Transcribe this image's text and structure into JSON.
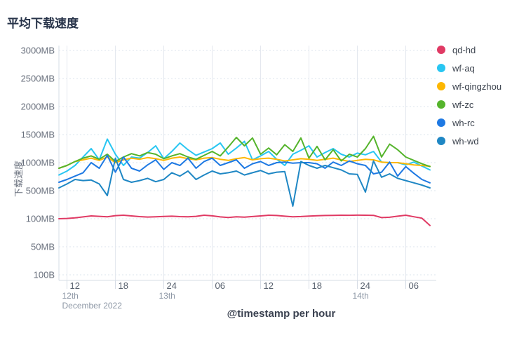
{
  "title": "平均下载速度",
  "chart_data": {
    "type": "line",
    "title": "平均下载速度",
    "legend_position": "right",
    "grid": true,
    "x_axis": {
      "title": "@timestamp per hour",
      "tick_indices": [
        1,
        7,
        13,
        19,
        25,
        31,
        37,
        43
      ],
      "tick_labels": [
        "12",
        "18",
        "24",
        "06",
        "12",
        "18",
        "24",
        "06"
      ],
      "day_labels": [
        {
          "text": "12th",
          "index": 1,
          "row": 1
        },
        {
          "text": "December 2022",
          "index": 1,
          "row": 2
        },
        {
          "text": "13th",
          "index": 13,
          "row": 1
        },
        {
          "text": "14th",
          "index": 37,
          "row": 1
        }
      ]
    },
    "y_axis": {
      "title": "下载速度",
      "tick_labels": [
        "3000MB",
        "2500MB",
        "2000MB",
        "1500MB",
        "1000MB",
        "500MB",
        "100MB",
        "50MB",
        "100B"
      ],
      "tick_values_mb": [
        3000,
        2500,
        2000,
        1500,
        1000,
        500,
        100,
        50,
        0.0001
      ]
    },
    "series": [
      {
        "name": "qd-hd",
        "color": "#e03a64",
        "values": [
          100,
          104,
          112,
          126,
          140,
          134,
          128,
          144,
          150,
          140,
          130,
          124,
          128,
          132,
          136,
          130,
          127,
          134,
          150,
          141,
          126,
          118,
          128,
          122,
          131,
          140,
          150,
          146,
          136,
          128,
          131,
          138,
          142,
          146,
          148,
          150,
          149,
          151,
          150,
          148,
          116,
          121,
          136,
          150,
          128,
          108,
          88
        ]
      },
      {
        "name": "wf-aq",
        "color": "#28c6f2",
        "values": [
          780,
          850,
          950,
          1100,
          1250,
          1050,
          1420,
          1150,
          950,
          1100,
          1080,
          1180,
          1300,
          1070,
          1200,
          1350,
          1230,
          1130,
          1190,
          1250,
          1350,
          1150,
          1260,
          1380,
          1050,
          1120,
          1200,
          1060,
          950,
          1150,
          1220,
          1300,
          1100,
          1180,
          1250,
          1150,
          1100,
          1170,
          1140,
          1200,
          1010,
          1000,
          1000,
          960,
          1010,
          940,
          870
        ]
      },
      {
        "name": "wf-qingzhou",
        "color": "#fdb702",
        "values": [
          900,
          950,
          1020,
          1050,
          1080,
          1040,
          1100,
          1000,
          1050,
          1080,
          1060,
          1090,
          1070,
          1040,
          1080,
          1100,
          1070,
          1050,
          1080,
          1090,
          1060,
          1040,
          1070,
          1090,
          1050,
          1070,
          1080,
          1060,
          1030,
          1050,
          1070,
          1060,
          1040,
          1060,
          1080,
          1050,
          1020,
          1040,
          1060,
          1050,
          1010,
          1000,
          1000,
          980,
          960,
          950,
          935
        ]
      },
      {
        "name": "wf-zc",
        "color": "#55b42c",
        "values": [
          900,
          950,
          1020,
          1080,
          1120,
          1060,
          1150,
          1020,
          1100,
          1160,
          1120,
          1180,
          1150,
          1070,
          1120,
          1160,
          1100,
          1060,
          1130,
          1200,
          1120,
          1280,
          1450,
          1300,
          1440,
          1150,
          1260,
          1140,
          1320,
          1200,
          1440,
          1080,
          1290,
          1050,
          1230,
          1030,
          1150,
          1100,
          1250,
          1470,
          1100,
          1330,
          1230,
          1100,
          1040,
          980,
          930
        ]
      },
      {
        "name": "wh-rc",
        "color": "#1e79e3",
        "values": [
          650,
          700,
          760,
          820,
          1000,
          900,
          1130,
          830,
          1100,
          900,
          850,
          960,
          1050,
          880,
          1000,
          950,
          1080,
          900,
          1020,
          1080,
          950,
          1000,
          1050,
          900,
          980,
          1020,
          950,
          1000,
          1010,
          990,
          1000,
          1000,
          980,
          900,
          1010,
          950,
          1030,
          980,
          950,
          800,
          830,
          1010,
          760,
          930,
          810,
          700,
          640
        ]
      },
      {
        "name": "wh-wd",
        "color": "#1f87c4",
        "values": [
          550,
          620,
          700,
          680,
          690,
          620,
          430,
          1080,
          700,
          650,
          680,
          720,
          660,
          700,
          820,
          760,
          850,
          700,
          780,
          850,
          800,
          820,
          850,
          780,
          820,
          860,
          800,
          830,
          840,
          280,
          1020,
          950,
          900,
          950,
          910,
          870,
          800,
          790,
          480,
          1030,
          740,
          800,
          720,
          680,
          640,
          600,
          550
        ]
      }
    ]
  }
}
